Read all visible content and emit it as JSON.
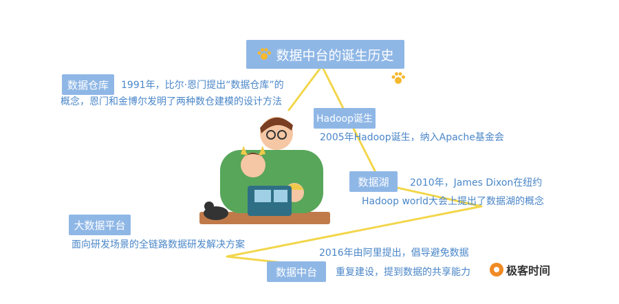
{
  "title": "数据中台的诞生历史",
  "nodes": [
    {
      "label": "数据仓库",
      "lines": [
        "1991年，比尔·恩门提出“数据仓库”的",
        "概念，恩门和金博尔发明了两种数仓建模的设计方法"
      ]
    },
    {
      "label": "Hadoop诞生",
      "lines": [
        "2005年Hadoop诞生，纳入Apache基金会"
      ]
    },
    {
      "label": "数据湖",
      "lines": [
        "2010年，James Dixon在纽约",
        "Hadoop world大会上提出了数据湖的概念"
      ]
    },
    {
      "label": "大数据平台",
      "lines": [
        "面向研发场景的全链路数据研发解决方案"
      ]
    },
    {
      "label": "数据中台",
      "lines": [
        "2016年由阿里提出，倡导避免数据",
        "重复建设，提到数据的共享能力"
      ]
    }
  ],
  "logo": {
    "text": "极客时间"
  },
  "colors": {
    "box": "#8fb7e6",
    "text": "#4a86c8",
    "path": "#f2d64b",
    "paw": "#f5b82e"
  }
}
